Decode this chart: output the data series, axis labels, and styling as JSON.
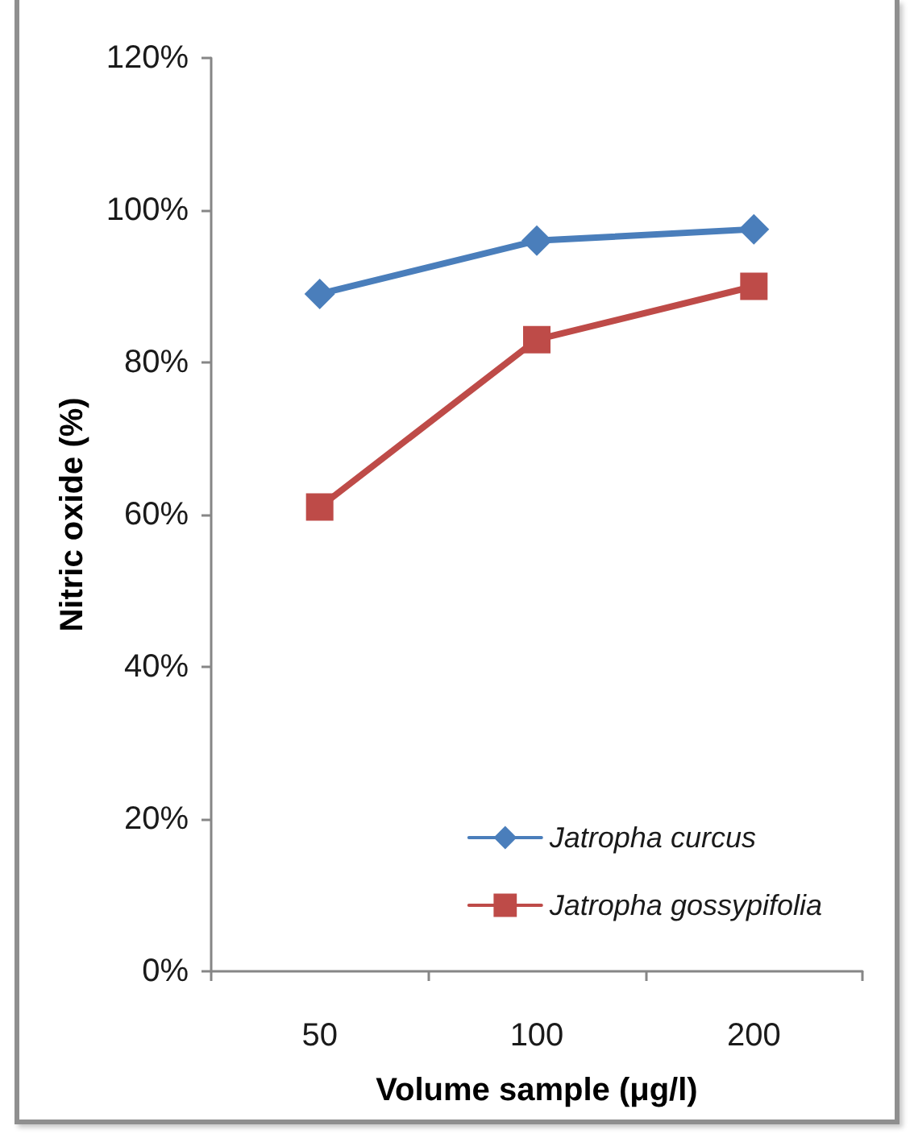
{
  "chart_data": {
    "type": "line",
    "xlabel": "Volume sample (μg/l)",
    "ylabel": "Nitric oxide (%)",
    "categories": [
      "50",
      "100",
      "200"
    ],
    "series": [
      {
        "name": "Jatropha curcus",
        "color": "#4a7ebb",
        "marker": "diamond",
        "values": [
          89,
          96,
          97.5
        ]
      },
      {
        "name": "Jatropha gossypifolia",
        "color": "#be4b48",
        "marker": "square",
        "values": [
          61,
          83,
          90
        ]
      }
    ],
    "ylim": [
      0,
      120
    ],
    "yticks": [
      {
        "value": 0,
        "label": "0%"
      },
      {
        "value": 20,
        "label": "20%"
      },
      {
        "value": 40,
        "label": "40%"
      },
      {
        "value": 60,
        "label": "60%"
      },
      {
        "value": 80,
        "label": "80%"
      },
      {
        "value": 100,
        "label": "100%"
      },
      {
        "value": 120,
        "label": "120%"
      }
    ],
    "grid": false,
    "legend": "bottom right",
    "line_style": "solid"
  }
}
